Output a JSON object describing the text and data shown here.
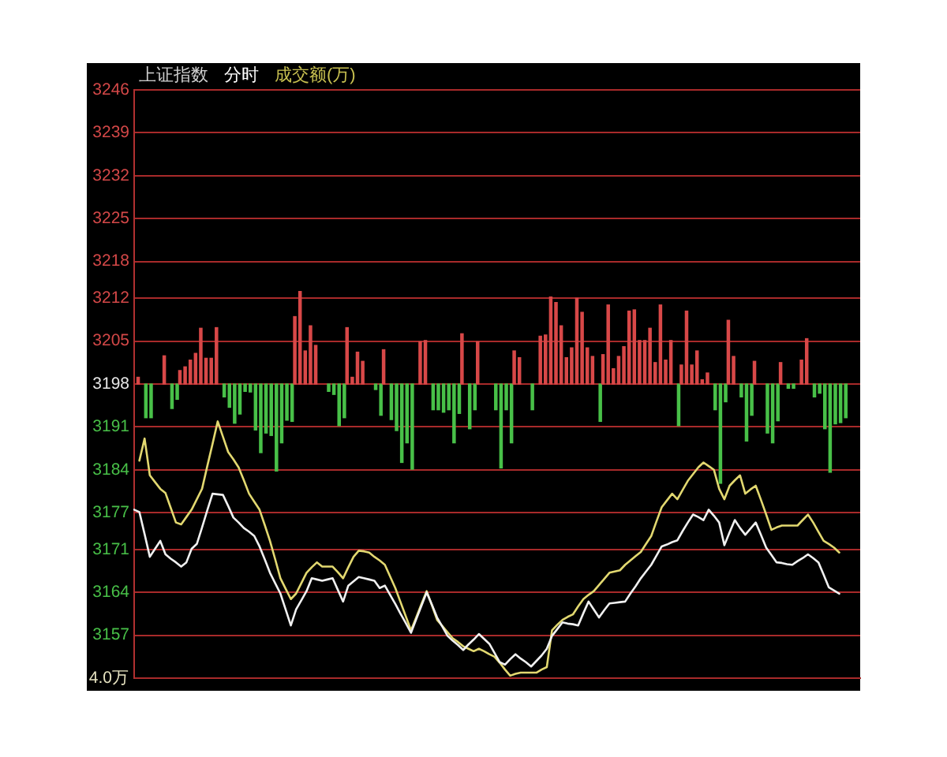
{
  "chart_data": {
    "type": "line",
    "title": "上证指数",
    "subtitle": "分时",
    "annotations": [
      "成交额(万)",
      "4.0万"
    ],
    "categories": [
      null,
      null,
      null,
      null,
      null,
      null,
      null,
      null,
      null,
      null,
      null,
      null,
      null,
      null,
      null,
      null,
      null,
      null,
      null,
      null,
      null,
      null,
      null,
      null,
      null,
      null,
      null,
      null,
      null,
      null,
      null,
      null,
      null,
      null,
      null,
      null,
      null,
      null,
      null,
      null,
      null,
      null,
      null,
      null,
      null,
      null,
      null,
      null,
      null,
      null,
      null,
      null,
      null,
      null,
      null,
      null,
      null,
      null,
      null,
      null,
      null,
      null,
      null,
      null,
      null,
      null,
      null,
      null,
      null,
      null,
      null,
      null,
      null,
      null,
      null,
      null,
      null,
      null,
      null,
      null,
      null,
      null,
      null,
      null,
      null,
      null,
      null,
      null,
      null,
      null,
      null,
      null,
      null,
      null,
      null,
      null,
      null,
      null,
      null,
      null,
      null,
      null,
      null,
      null,
      null,
      null,
      null,
      null,
      null,
      null,
      null,
      null,
      null,
      null,
      null,
      null,
      null,
      null,
      null,
      null,
      null,
      null,
      null,
      null,
      null,
      null,
      null,
      null,
      null,
      null,
      null,
      null,
      null,
      null,
      null,
      null,
      null,
      null,
      null,
      null
    ],
    "ylim": [
      3150,
      3246
    ],
    "yticks": [
      3157,
      3164,
      3171,
      3177,
      3184,
      3191,
      3198,
      3205,
      3212,
      3218,
      3225,
      3232,
      3239,
      3246
    ],
    "tick_labels": "y",
    "grid": "y",
    "marker": "none",
    "series": [
      {
        "type": "bar",
        "color": "#d84848",
        "base": [
          null,
          3198,
          null,
          null,
          null,
          null,
          3198,
          null,
          null,
          3198,
          3198,
          3198,
          3198,
          3198,
          3198,
          3198,
          3198,
          null,
          null,
          null,
          null,
          null,
          null,
          null,
          null,
          null,
          null,
          null,
          null,
          null,
          null,
          3198,
          3198,
          3198,
          3198,
          3198,
          null,
          null,
          null,
          null,
          null,
          3198,
          3198,
          3198,
          3198,
          null,
          null,
          null,
          3198,
          null,
          null,
          null,
          null,
          null,
          null,
          3198,
          3198,
          null,
          null,
          null,
          null,
          null,
          null,
          3198,
          null,
          null,
          3198,
          null,
          null,
          null,
          null,
          null,
          null,
          3198,
          3198,
          null,
          null,
          null,
          3198,
          3198,
          3198,
          3198,
          3198,
          3198,
          3198,
          3198,
          3198,
          3198,
          3198,
          null,
          3198,
          3198,
          3198,
          3198,
          3198,
          3198,
          3198,
          3198,
          3198,
          3198,
          3198,
          3198,
          3198,
          3198,
          null,
          3198,
          3198,
          3198,
          3198,
          3198,
          3198,
          null,
          null,
          null,
          3198,
          3198,
          null,
          null,
          null,
          3198,
          null,
          null,
          null,
          null,
          3198,
          null,
          null,
          null,
          3198,
          3198,
          null,
          null,
          null,
          null,
          null,
          null,
          null,
          null,
          null,
          null
        ],
        "values": [
          null,
          1.1,
          null,
          null,
          null,
          null,
          4.6,
          null,
          null,
          2.2,
          2.8,
          3.9,
          5.0,
          9.1,
          4.2,
          4.2,
          9.2,
          null,
          null,
          null,
          null,
          null,
          null,
          null,
          null,
          null,
          null,
          null,
          null,
          null,
          null,
          11.0,
          15.1,
          5.4,
          9.5,
          6.3,
          null,
          null,
          null,
          null,
          null,
          9.2,
          1.1,
          5.2,
          3.7,
          null,
          null,
          null,
          5.6,
          null,
          null,
          null,
          null,
          null,
          null,
          6.9,
          7.1,
          null,
          null,
          null,
          null,
          null,
          null,
          8.2,
          null,
          null,
          6.9,
          null,
          null,
          null,
          null,
          null,
          null,
          5.4,
          4.3,
          null,
          null,
          null,
          7.8,
          8.0,
          14.2,
          13.3,
          9.5,
          4.3,
          5.9,
          14.0,
          11.7,
          5.9,
          4.5,
          null,
          4.8,
          12.9,
          2.5,
          4.5,
          6.1,
          11.9,
          12.1,
          7.1,
          7.1,
          9.1,
          3.5,
          12.9,
          3.9,
          7.1,
          null,
          3.1,
          11.9,
          3.1,
          5.4,
          0.7,
          1.8,
          null,
          null,
          null,
          10.4,
          4.5,
          null,
          null,
          null,
          3.7,
          null,
          null,
          null,
          null,
          3.5,
          null,
          null,
          null,
          3.9,
          7.4,
          null,
          null,
          null,
          null,
          null,
          null,
          null,
          null,
          null,
          null
        ]
      },
      {
        "type": "bar",
        "color": "#48c048",
        "base": [
          null,
          null,
          3198,
          3198,
          null,
          null,
          null,
          3198,
          3198,
          null,
          null,
          null,
          null,
          null,
          null,
          null,
          null,
          3198,
          3198,
          3198,
          3198,
          3198,
          3198,
          3198,
          3198,
          3198,
          3198,
          3198,
          3198,
          3198,
          3198,
          null,
          null,
          null,
          null,
          null,
          null,
          3198,
          3198,
          3198,
          3198,
          null,
          null,
          null,
          null,
          null,
          3198,
          3198,
          null,
          3198,
          3198,
          3198,
          3198,
          3198,
          null,
          null,
          null,
          3198,
          3198,
          3198,
          3198,
          3198,
          3198,
          null,
          3198,
          3198,
          null,
          null,
          null,
          3198,
          3198,
          3198,
          3198,
          null,
          null,
          null,
          3198,
          null,
          null,
          null,
          null,
          null,
          null,
          null,
          null,
          null,
          null,
          null,
          null,
          3198,
          null,
          null,
          null,
          null,
          null,
          null,
          null,
          null,
          null,
          null,
          null,
          null,
          null,
          null,
          3198,
          null,
          null,
          null,
          null,
          null,
          null,
          3198,
          3198,
          3198,
          null,
          null,
          3198,
          3198,
          3198,
          null,
          null,
          3198,
          3198,
          3198,
          null,
          3198,
          3198,
          null,
          null,
          null,
          3198,
          3198,
          3198,
          3198,
          3198,
          3198,
          3198,
          null,
          null,
          null
        ],
        "values": [
          null,
          null,
          -5.5,
          -5.5,
          null,
          null,
          null,
          -4.0,
          -2.5,
          null,
          null,
          null,
          null,
          null,
          null,
          null,
          null,
          -2.1,
          -3.8,
          -6.4,
          -4.9,
          -1.2,
          -1.3,
          -7.5,
          -11.2,
          -8.0,
          -8.4,
          -14.2,
          -9.6,
          -5.9,
          -6.1,
          null,
          null,
          null,
          null,
          null,
          null,
          -1.2,
          -1.7,
          -6.8,
          -5.5,
          null,
          null,
          null,
          null,
          null,
          -0.9,
          -5.1,
          null,
          -5.8,
          -7.6,
          -12.8,
          -9.6,
          -13.9,
          null,
          null,
          null,
          -4.2,
          -4.2,
          -4.6,
          -4.2,
          -9.6,
          -4.8,
          null,
          -7.3,
          -4.2,
          null,
          null,
          null,
          -4.2,
          -13.7,
          -4.2,
          -9.6,
          null,
          null,
          null,
          -4.2,
          null,
          null,
          null,
          null,
          null,
          null,
          null,
          null,
          null,
          null,
          null,
          null,
          -6.1,
          null,
          null,
          null,
          null,
          null,
          null,
          null,
          null,
          null,
          null,
          null,
          null,
          null,
          null,
          -6.8,
          null,
          null,
          null,
          null,
          null,
          null,
          -4.2,
          -16.2,
          -2.9,
          null,
          null,
          -2.1,
          -9.3,
          -5.1,
          null,
          null,
          -8.0,
          -9.6,
          -6.0,
          null,
          -0.7,
          -0.7,
          null,
          null,
          null,
          -2.1,
          -1.5,
          -7.3,
          -14.4,
          -6.5,
          -6.3,
          -5.5,
          null,
          null,
          null
        ]
      },
      {
        "color": "#f0f0f0",
        "values": [
          3177.5,
          3177.1,
          3173.5,
          3169.8,
          3171.1,
          3172.4,
          3170.2,
          3169.5,
          3168.9,
          3168.2,
          3168.9,
          3171.1,
          3171.9,
          3174.6,
          3177.4,
          3180.1,
          3180.0,
          3179.9,
          3178.1,
          3176.2,
          3175.4,
          3174.5,
          3173.9,
          3173.2,
          3171.5,
          3169.4,
          3167.2,
          3165.5,
          3163.8,
          3161.2,
          3158.6,
          3161.2,
          3162.7,
          3164.2,
          3166.3,
          3166.1,
          3165.9,
          3166.1,
          3166.3,
          3164.4,
          3162.5,
          3165.1,
          3165.8,
          3166.5,
          3166.3,
          3166.1,
          3165.9,
          3164.7,
          3165.1,
          3163.6,
          3162.1,
          3160.5,
          3159.0,
          3157.4,
          3159.6,
          3161.8,
          3164.0,
          3162.0,
          3159.9,
          3158.4,
          3156.9,
          3156.1,
          3155.4,
          3154.6,
          3155.5,
          3156.3,
          3157.2,
          3156.4,
          3155.6,
          3154.1,
          3152.6,
          3152.2,
          3153.1,
          3153.9,
          3153.2,
          3152.6,
          3151.9,
          3152.8,
          3153.7,
          3154.8,
          3156.9,
          3158.0,
          3159.1,
          3158.9,
          3158.8,
          3158.6,
          3160.6,
          3162.5,
          3161.2,
          3159.9,
          3161.1,
          3162.2,
          3162.3,
          3162.4,
          3162.5,
          3163.8,
          3165.0,
          3166.3,
          3167.4,
          3168.5,
          3170.0,
          3171.5,
          3171.8,
          3172.2,
          3172.5,
          3174.0,
          3175.4,
          3176.7,
          3176.3,
          3175.8,
          3177.5,
          3176.5,
          3175.4,
          3171.7,
          3173.8,
          3175.8,
          3174.5,
          3173.4,
          3174.4,
          3175.4,
          3173.4,
          3171.3,
          3170.1,
          3168.9,
          3168.8,
          3168.6,
          3168.5,
          3169.1,
          3169.6,
          3170.2,
          3169.6,
          3168.9,
          3166.9,
          3164.8,
          3164.3,
          3163.8,
          null,
          null,
          null,
          null
        ]
      },
      {
        "color": "#e2d870",
        "values": [
          null,
          3185.5,
          3189.1,
          3183.1,
          3182.0,
          3180.9,
          3180.2,
          3177.8,
          3175.4,
          3175.1,
          3176.3,
          3177.5,
          3179.2,
          3180.9,
          3184.6,
          3188.2,
          3191.9,
          3189.4,
          3186.9,
          3185.7,
          3184.4,
          3182.3,
          3180.1,
          3178.8,
          3177.5,
          3175.0,
          3172.4,
          3169.4,
          3166.3,
          3164.6,
          3162.9,
          3163.8,
          3165.5,
          3167.2,
          3168.1,
          3168.9,
          3168.2,
          3168.2,
          3168.2,
          3167.3,
          3166.3,
          3168.1,
          3169.8,
          3170.8,
          3170.7,
          3170.5,
          3169.8,
          3169.2,
          3168.5,
          3166.6,
          3164.7,
          3162.4,
          3160.1,
          3157.8,
          3159.9,
          3162.1,
          3164.2,
          3161.9,
          3159.5,
          3158.5,
          3157.5,
          3156.5,
          3155.9,
          3155.2,
          3154.8,
          3154.4,
          3154.8,
          3154.4,
          3153.9,
          3153.5,
          3152.5,
          3151.4,
          3150.4,
          3150.7,
          3150.9,
          3150.9,
          3150.9,
          3150.9,
          3151.4,
          3151.8,
          3157.8,
          3158.7,
          3159.5,
          3160.0,
          3160.4,
          3161.7,
          3162.9,
          3163.6,
          3164.2,
          3165.2,
          3166.2,
          3167.2,
          3167.4,
          3167.6,
          3168.5,
          3169.2,
          3169.9,
          3170.6,
          3171.9,
          3173.2,
          3175.6,
          3177.9,
          3179.0,
          3180.1,
          3179.2,
          3180.7,
          3182.2,
          3183.3,
          3184.4,
          3185.2,
          3184.6,
          3184.0,
          3180.9,
          3179.2,
          3181.4,
          3182.3,
          3183.1,
          3180.1,
          3180.8,
          3181.4,
          3179.1,
          3176.7,
          3174.2,
          3174.6,
          3174.9,
          3174.9,
          3174.9,
          3174.9,
          3175.8,
          3176.7,
          3175.4,
          3173.9,
          3172.4,
          3171.9,
          3171.3,
          3170.5,
          null,
          null,
          null,
          null
        ]
      }
    ]
  }
}
